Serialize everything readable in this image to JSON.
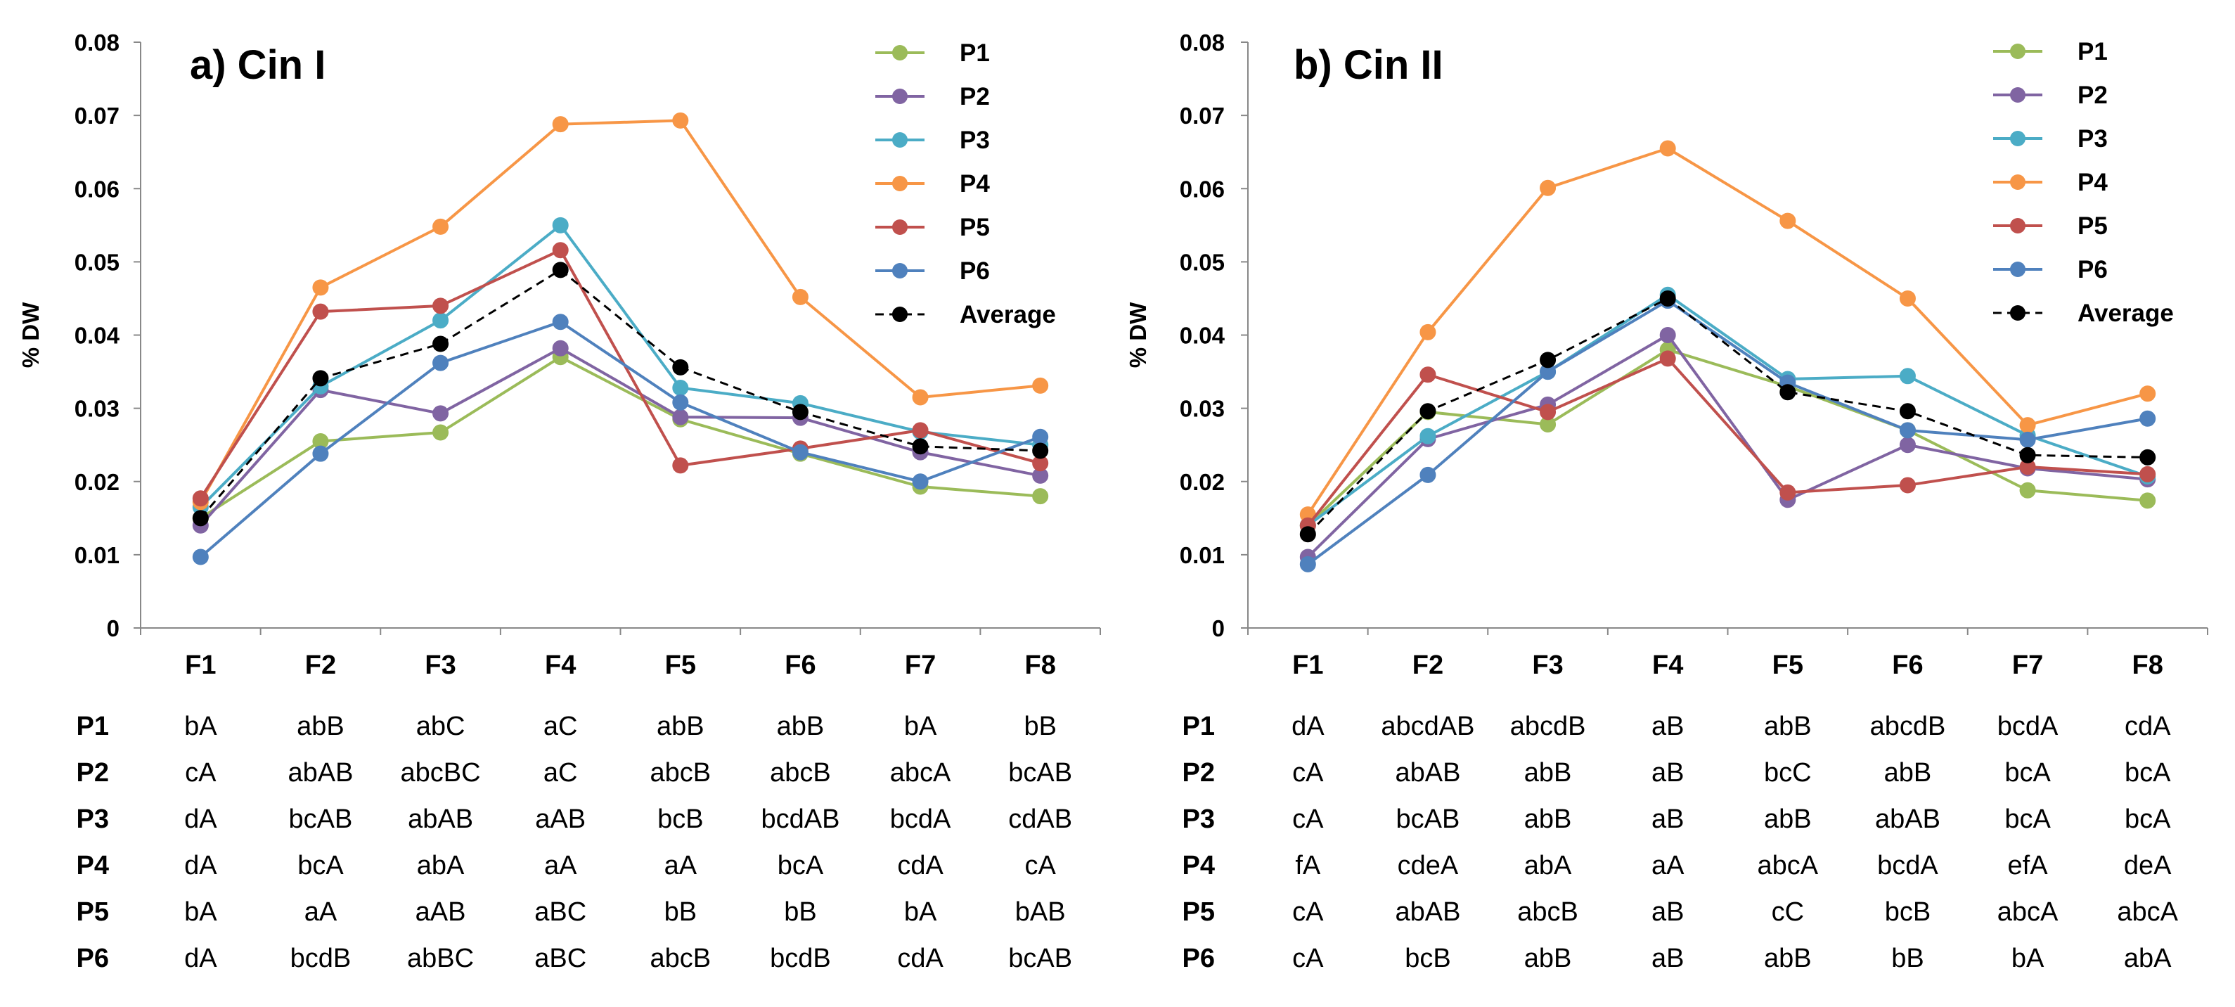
{
  "chart_data": [
    {
      "type": "line",
      "title": "a) Cin I",
      "ylabel": "% DW",
      "xlabel": "",
      "ylim": [
        0,
        0.08
      ],
      "yticks": [
        "0",
        "0.01",
        "0.02",
        "0.03",
        "0.04",
        "0.05",
        "0.06",
        "0.07",
        "0.08"
      ],
      "ytick_values": [
        0,
        0.01,
        0.02,
        0.03,
        0.04,
        0.05,
        0.06,
        0.07,
        0.08
      ],
      "categories": [
        "F1",
        "F2",
        "F3",
        "F4",
        "F5",
        "F6",
        "F7",
        "F8"
      ],
      "legend_position": "top-right",
      "series": [
        {
          "name": "P1",
          "color": "#9BBB59",
          "dashed": false,
          "values": [
            0.015,
            0.0255,
            0.0267,
            0.037,
            0.0285,
            0.0238,
            0.0193,
            0.018
          ]
        },
        {
          "name": "P2",
          "color": "#8064A2",
          "dashed": false,
          "values": [
            0.014,
            0.0325,
            0.0293,
            0.0382,
            0.0288,
            0.0287,
            0.024,
            0.0208
          ]
        },
        {
          "name": "P3",
          "color": "#4BACC6",
          "dashed": false,
          "values": [
            0.0165,
            0.033,
            0.042,
            0.055,
            0.0328,
            0.0307,
            0.0268,
            0.025
          ]
        },
        {
          "name": "P4",
          "color": "#F79646",
          "dashed": false,
          "values": [
            0.0172,
            0.0465,
            0.0548,
            0.0688,
            0.0693,
            0.0452,
            0.0315,
            0.0331
          ]
        },
        {
          "name": "P5",
          "color": "#C0504D",
          "dashed": false,
          "values": [
            0.0177,
            0.0432,
            0.044,
            0.0516,
            0.0222,
            0.0245,
            0.027,
            0.0225
          ]
        },
        {
          "name": "P6",
          "color": "#4F81BD",
          "dashed": false,
          "values": [
            0.0097,
            0.0238,
            0.0362,
            0.0418,
            0.0308,
            0.024,
            0.02,
            0.0261
          ]
        },
        {
          "name": "Average",
          "color": "#000000",
          "dashed": true,
          "values": [
            0.015,
            0.0341,
            0.0388,
            0.0489,
            0.0356,
            0.0295,
            0.0248,
            0.0242
          ]
        }
      ],
      "table": {
        "rows": [
          {
            "label": "P1",
            "cells": [
              "bA",
              "abB",
              "abC",
              "aC",
              "abB",
              "abB",
              "bA",
              "bB"
            ]
          },
          {
            "label": "P2",
            "cells": [
              "cA",
              "abAB",
              "abcBC",
              "aC",
              "abcB",
              "abcB",
              "abcA",
              "bcAB"
            ]
          },
          {
            "label": "P3",
            "cells": [
              "dA",
              "bcAB",
              "abAB",
              "aAB",
              "bcB",
              "bcdAB",
              "bcdA",
              "cdAB"
            ]
          },
          {
            "label": "P4",
            "cells": [
              "dA",
              "bcA",
              "abA",
              "aA",
              "aA",
              "bcA",
              "cdA",
              "cA"
            ]
          },
          {
            "label": "P5",
            "cells": [
              "bA",
              "aA",
              "aAB",
              "aBC",
              "bB",
              "bB",
              "bA",
              "bAB"
            ]
          },
          {
            "label": "P6",
            "cells": [
              "dA",
              "bcdB",
              "abBC",
              "aBC",
              "abcB",
              "bcdB",
              "cdA",
              "bcAB"
            ]
          }
        ]
      }
    },
    {
      "type": "line",
      "title": "b) Cin II",
      "ylabel": "% DW",
      "xlabel": "",
      "ylim": [
        0,
        0.08
      ],
      "yticks": [
        "0",
        "0.01",
        "0.02",
        "0.03",
        "0.04",
        "0.05",
        "0.06",
        "0.07",
        "0.08"
      ],
      "ytick_values": [
        0,
        0.01,
        0.02,
        0.03,
        0.04,
        0.05,
        0.06,
        0.07,
        0.08
      ],
      "categories": [
        "F1",
        "F2",
        "F3",
        "F4",
        "F5",
        "F6",
        "F7",
        "F8"
      ],
      "legend_position": "top-right",
      "series": [
        {
          "name": "P1",
          "color": "#9BBB59",
          "dashed": false,
          "values": [
            0.014,
            0.0295,
            0.0278,
            0.038,
            0.033,
            0.027,
            0.0188,
            0.0174
          ]
        },
        {
          "name": "P2",
          "color": "#8064A2",
          "dashed": false,
          "values": [
            0.0097,
            0.0258,
            0.0305,
            0.04,
            0.0175,
            0.025,
            0.0218,
            0.0203
          ]
        },
        {
          "name": "P3",
          "color": "#4BACC6",
          "dashed": false,
          "values": [
            0.014,
            0.0262,
            0.035,
            0.0455,
            0.034,
            0.0344,
            0.0263,
            0.0207
          ]
        },
        {
          "name": "P4",
          "color": "#F79646",
          "dashed": false,
          "values": [
            0.0155,
            0.0404,
            0.0601,
            0.0655,
            0.0556,
            0.045,
            0.0277,
            0.032
          ]
        },
        {
          "name": "P5",
          "color": "#C0504D",
          "dashed": false,
          "values": [
            0.014,
            0.0346,
            0.0295,
            0.0368,
            0.0185,
            0.0195,
            0.022,
            0.021
          ]
        },
        {
          "name": "P6",
          "color": "#4F81BD",
          "dashed": false,
          "values": [
            0.0087,
            0.0209,
            0.035,
            0.0447,
            0.0335,
            0.027,
            0.0257,
            0.0286
          ]
        },
        {
          "name": "Average",
          "color": "#000000",
          "dashed": true,
          "values": [
            0.0128,
            0.0296,
            0.0366,
            0.045,
            0.0322,
            0.0296,
            0.0236,
            0.0233
          ]
        }
      ],
      "table": {
        "rows": [
          {
            "label": "P1",
            "cells": [
              "dA",
              "abcdAB",
              "abcdB",
              "aB",
              "abB",
              "abcdB",
              "bcdA",
              "cdA"
            ]
          },
          {
            "label": "P2",
            "cells": [
              "cA",
              "abAB",
              "abB",
              "aB",
              "bcC",
              "abB",
              "bcA",
              "bcA"
            ]
          },
          {
            "label": "P3",
            "cells": [
              "cA",
              "bcAB",
              "abB",
              "aB",
              "abB",
              "abAB",
              "bcA",
              "bcA"
            ]
          },
          {
            "label": "P4",
            "cells": [
              "fA",
              "cdeA",
              "abA",
              "aA",
              "abcA",
              "bcdA",
              "efA",
              "deA"
            ]
          },
          {
            "label": "P5",
            "cells": [
              "cA",
              "abAB",
              "abcB",
              "aB",
              "cC",
              "bcB",
              "abcA",
              "abcA"
            ]
          },
          {
            "label": "P6",
            "cells": [
              "cA",
              "bcB",
              "abB",
              "aB",
              "abB",
              "bB",
              "bA",
              "abA"
            ]
          }
        ]
      }
    }
  ]
}
